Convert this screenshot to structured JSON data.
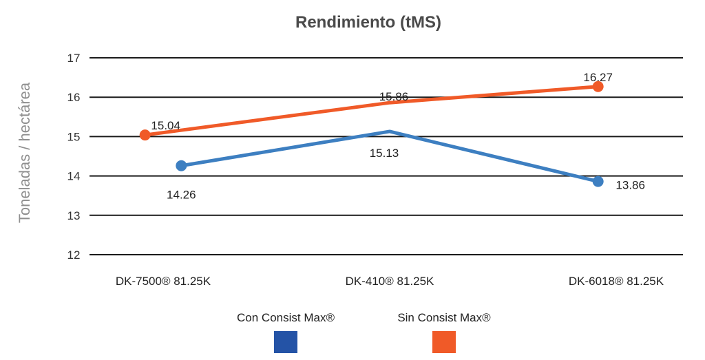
{
  "chart_data": {
    "type": "line",
    "title": "Rendimiento (tMS)",
    "xlabel": "",
    "ylabel": "Toneladas / hectárea",
    "ylim": [
      12,
      17
    ],
    "yticks": [
      17,
      16,
      15,
      14,
      13,
      12
    ],
    "grid": true,
    "legend_position": "bottom",
    "categories": [
      "DK-7500® 81.25K",
      "DK-410® 81.25K",
      "DK-6018® 81.25K"
    ],
    "series": [
      {
        "name": "Con Consist Max®",
        "legend_color": "#2453a6",
        "line_color": "#3d7fc1",
        "points": [
          {
            "category": "DK-7500® 81.25K",
            "x": 0.08,
            "value": 14.26,
            "label_value": 14.26
          },
          {
            "category": "DK-410® 81.25K",
            "x": 1,
            "value": 15.13,
            "label_value": 15.13
          },
          {
            "category": "DK-6018® 81.25K",
            "x": 1.92,
            "value": 13.86,
            "label_value": 13.86
          }
        ]
      },
      {
        "name": "Sin Consist Max®",
        "legend_color": "#f05a28",
        "line_color": "#f05a28",
        "points": [
          {
            "category": "DK-7500® 81.25K",
            "x": -0.08,
            "value": 15.04,
            "label_value": 15.04
          },
          {
            "category": "DK-410® 81.25K",
            "x": 1,
            "value": 15.86,
            "label_value": 15.86
          },
          {
            "category": "DK-6018® 81.25K",
            "x": 1.92,
            "value": 16.27,
            "label_value": 16.27
          }
        ]
      }
    ]
  }
}
